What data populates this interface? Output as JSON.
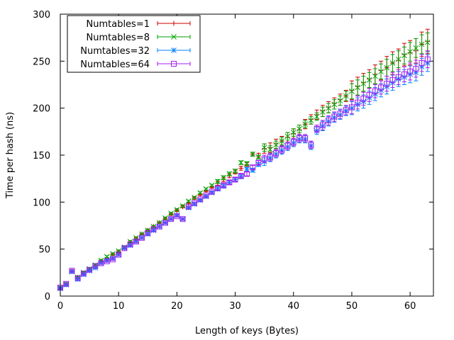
{
  "chart_data": {
    "type": "scatter",
    "xlabel": "Length of keys (Bytes)",
    "ylabel": "Time per hash (ns)",
    "xlim": [
      0,
      64
    ],
    "ylim": [
      0,
      300
    ],
    "xticks": [
      0,
      10,
      20,
      30,
      40,
      50,
      60
    ],
    "yticks": [
      0,
      50,
      100,
      150,
      200,
      250,
      300
    ],
    "grid": false,
    "error_bars": true,
    "legend": {
      "placement": "top-left"
    },
    "series": [
      {
        "name": "Numtables=1",
        "color": "#cc0000",
        "marker": "plus",
        "x": [
          0,
          1,
          2,
          3,
          4,
          5,
          6,
          7,
          8,
          9,
          10,
          11,
          12,
          13,
          14,
          15,
          16,
          17,
          18,
          19,
          20,
          21,
          22,
          23,
          24,
          25,
          26,
          27,
          28,
          29,
          30,
          31,
          32,
          33,
          34,
          35,
          36,
          37,
          38,
          39,
          40,
          41,
          42,
          43,
          44,
          45,
          46,
          47,
          48,
          49,
          50,
          51,
          52,
          53,
          54,
          55,
          56,
          57,
          58,
          59,
          60,
          61,
          62,
          63
        ],
        "y": [
          9,
          13,
          27,
          20,
          24,
          28,
          32,
          37,
          40,
          44,
          47,
          51,
          57,
          61,
          66,
          70,
          74,
          78,
          82,
          87,
          91,
          95,
          99,
          104,
          108,
          112,
          116,
          120,
          124,
          128,
          132,
          136,
          140,
          151,
          150,
          157,
          158,
          162,
          165,
          169,
          173,
          177,
          183,
          188,
          193,
          197,
          201,
          205,
          209,
          213,
          219,
          223,
          227,
          231,
          236,
          240,
          243,
          248,
          251,
          257,
          259,
          261,
          268,
          271
        ],
        "err": [
          1,
          1,
          1,
          1,
          1,
          1,
          1,
          1,
          1,
          1,
          1,
          1,
          1,
          1,
          1,
          1,
          1,
          1,
          1,
          1,
          1,
          1,
          1,
          1,
          1,
          1,
          1,
          2,
          2,
          2,
          2,
          2,
          2,
          2,
          2,
          5,
          5,
          5,
          5,
          5,
          5,
          5,
          5,
          5,
          5,
          6,
          6,
          6,
          6,
          6,
          10,
          10,
          10,
          10,
          10,
          10,
          12,
          12,
          12,
          12,
          13,
          13,
          13,
          13
        ]
      },
      {
        "name": "Numtables=8",
        "color": "#00a000",
        "marker": "x",
        "x": [
          0,
          1,
          2,
          3,
          4,
          5,
          6,
          7,
          8,
          9,
          10,
          11,
          12,
          13,
          14,
          15,
          16,
          17,
          18,
          19,
          20,
          21,
          22,
          23,
          24,
          25,
          26,
          27,
          28,
          29,
          30,
          31,
          32,
          33,
          34,
          35,
          36,
          37,
          38,
          39,
          40,
          41,
          42,
          43,
          44,
          45,
          46,
          47,
          48,
          49,
          50,
          51,
          52,
          53,
          54,
          55,
          56,
          57,
          58,
          59,
          60,
          61,
          62,
          63
        ],
        "y": [
          9,
          13,
          26,
          20,
          25,
          29,
          33,
          38,
          42,
          45,
          48,
          52,
          58,
          62,
          66,
          70,
          74,
          78,
          83,
          88,
          92,
          96,
          101,
          105,
          110,
          114,
          118,
          122,
          126,
          130,
          133,
          142,
          141,
          151,
          148,
          158,
          156,
          161,
          165,
          170,
          174,
          178,
          183,
          187,
          191,
          196,
          200,
          204,
          208,
          213,
          218,
          222,
          226,
          230,
          234,
          239,
          243,
          248,
          252,
          256,
          260,
          264,
          268,
          270
        ],
        "err": [
          1,
          1,
          1,
          1,
          1,
          1,
          1,
          1,
          1,
          1,
          1,
          1,
          1,
          1,
          1,
          1,
          1,
          1,
          1,
          1,
          1,
          1,
          1,
          1,
          1,
          1,
          1,
          2,
          2,
          2,
          2,
          2,
          2,
          2,
          2,
          4,
          4,
          4,
          4,
          4,
          4,
          4,
          4,
          4,
          4,
          5,
          5,
          5,
          5,
          5,
          8,
          8,
          8,
          8,
          8,
          8,
          9,
          9,
          9,
          9,
          10,
          10,
          10,
          10
        ]
      },
      {
        "name": "Numtables=32",
        "color": "#0080ff",
        "marker": "star",
        "x": [
          0,
          1,
          2,
          3,
          4,
          5,
          6,
          7,
          8,
          9,
          10,
          11,
          12,
          13,
          14,
          15,
          16,
          17,
          18,
          19,
          20,
          21,
          22,
          23,
          24,
          25,
          26,
          27,
          28,
          29,
          30,
          31,
          32,
          33,
          34,
          35,
          36,
          37,
          38,
          39,
          40,
          41,
          42,
          43,
          44,
          45,
          46,
          47,
          48,
          49,
          50,
          51,
          52,
          53,
          54,
          55,
          56,
          57,
          58,
          59,
          60,
          61,
          62,
          63
        ],
        "y": [
          8,
          12,
          26,
          18,
          23,
          27,
          30,
          35,
          38,
          40,
          44,
          51,
          54,
          58,
          62,
          66,
          70,
          74,
          78,
          82,
          86,
          82,
          94,
          98,
          102,
          106,
          110,
          114,
          117,
          121,
          124,
          127,
          135,
          134,
          140,
          143,
          147,
          151,
          155,
          159,
          163,
          167,
          167,
          160,
          176,
          181,
          186,
          190,
          193,
          197,
          200,
          204,
          207,
          211,
          215,
          219,
          223,
          227,
          231,
          233,
          236,
          238,
          244,
          248
        ],
        "err": [
          1,
          1,
          1,
          1,
          1,
          1,
          1,
          1,
          1,
          1,
          1,
          1,
          1,
          1,
          1,
          1,
          1,
          1,
          1,
          1,
          1,
          1,
          1,
          1,
          1,
          1,
          1,
          2,
          2,
          2,
          2,
          2,
          2,
          2,
          2,
          4,
          4,
          4,
          4,
          4,
          4,
          4,
          4,
          4,
          4,
          5,
          5,
          5,
          5,
          5,
          7,
          7,
          7,
          7,
          7,
          7,
          8,
          8,
          8,
          8,
          9,
          9,
          9,
          9
        ]
      },
      {
        "name": "Numtables=64",
        "color": "#a020f0",
        "marker": "square",
        "x": [
          0,
          1,
          2,
          3,
          4,
          5,
          6,
          7,
          8,
          9,
          10,
          11,
          12,
          13,
          14,
          15,
          16,
          17,
          18,
          19,
          20,
          21,
          22,
          23,
          24,
          25,
          26,
          27,
          28,
          29,
          30,
          31,
          32,
          33,
          34,
          35,
          36,
          37,
          38,
          39,
          40,
          41,
          42,
          43,
          44,
          45,
          46,
          47,
          48,
          49,
          50,
          51,
          52,
          53,
          54,
          55,
          56,
          57,
          58,
          59,
          60,
          61,
          62,
          63
        ],
        "y": [
          9,
          13,
          27,
          19,
          24,
          28,
          32,
          35,
          37,
          39,
          44,
          51,
          55,
          58,
          62,
          67,
          71,
          74,
          78,
          82,
          85,
          82,
          95,
          99,
          103,
          107,
          111,
          115,
          118,
          121,
          124,
          128,
          130,
          137,
          142,
          146,
          148,
          152,
          156,
          160,
          164,
          168,
          168,
          161,
          178,
          182,
          187,
          191,
          194,
          198,
          201,
          206,
          210,
          214,
          218,
          222,
          226,
          230,
          233,
          236,
          239,
          242,
          248,
          252
        ],
        "err": [
          1,
          1,
          1,
          1,
          1,
          1,
          1,
          1,
          1,
          1,
          1,
          1,
          1,
          1,
          1,
          1,
          1,
          1,
          1,
          1,
          1,
          1,
          1,
          1,
          1,
          1,
          1,
          2,
          2,
          2,
          2,
          2,
          2,
          2,
          2,
          4,
          4,
          4,
          4,
          4,
          4,
          4,
          4,
          4,
          4,
          5,
          5,
          5,
          5,
          5,
          7,
          7,
          7,
          7,
          7,
          7,
          8,
          8,
          8,
          8,
          9,
          9,
          9,
          9
        ]
      }
    ]
  }
}
